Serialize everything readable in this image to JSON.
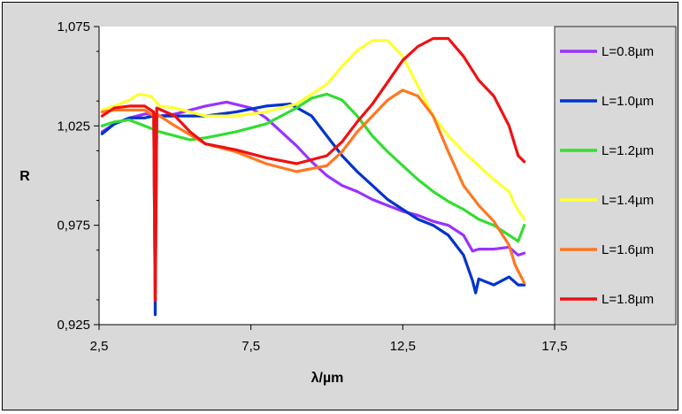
{
  "chart_data": {
    "type": "line",
    "title": "",
    "xlabel": "λ/µm",
    "ylabel": "R",
    "xlim": [
      2.5,
      17.5
    ],
    "ylim": [
      0.925,
      1.075
    ],
    "x_ticks": [
      "2,5",
      "7,5",
      "12,5",
      "17,5"
    ],
    "y_ticks": [
      "0,925",
      "0,975",
      "1,025",
      "1,075"
    ],
    "grid": false,
    "legend_position": "right",
    "plot_background": "#ffffff",
    "chart_background": "#d9d9d9",
    "series": [
      {
        "name": "L=0.8µm",
        "color": "#9933ff",
        "points": [
          [
            2.6,
            1.022
          ],
          [
            3.0,
            1.026
          ],
          [
            3.5,
            1.029
          ],
          [
            4.0,
            1.031
          ],
          [
            4.3,
            1.031
          ],
          [
            4.5,
            1.03
          ],
          [
            5.0,
            1.031
          ],
          [
            6.0,
            1.035
          ],
          [
            6.7,
            1.037
          ],
          [
            7.5,
            1.034
          ],
          [
            8.0,
            1.029
          ],
          [
            8.5,
            1.022
          ],
          [
            9.0,
            1.015
          ],
          [
            9.5,
            1.007
          ],
          [
            10.0,
            1.0
          ],
          [
            10.5,
            0.995
          ],
          [
            11.0,
            0.992
          ],
          [
            11.5,
            0.988
          ],
          [
            12.0,
            0.985
          ],
          [
            12.5,
            0.982
          ],
          [
            13.0,
            0.98
          ],
          [
            13.5,
            0.977
          ],
          [
            14.0,
            0.975
          ],
          [
            14.5,
            0.97
          ],
          [
            14.8,
            0.962
          ],
          [
            15.0,
            0.963
          ],
          [
            15.5,
            0.963
          ],
          [
            16.0,
            0.964
          ],
          [
            16.3,
            0.96
          ],
          [
            16.5,
            0.961
          ]
        ]
      },
      {
        "name": "L=1.0µm",
        "color": "#0033cc",
        "points": [
          [
            2.6,
            1.021
          ],
          [
            3.0,
            1.026
          ],
          [
            3.5,
            1.029
          ],
          [
            4.0,
            1.029
          ],
          [
            4.3,
            1.03
          ],
          [
            4.35,
            0.93
          ],
          [
            4.4,
            1.03
          ],
          [
            5.0,
            1.03
          ],
          [
            6.0,
            1.03
          ],
          [
            7.0,
            1.032
          ],
          [
            8.0,
            1.035
          ],
          [
            8.8,
            1.036
          ],
          [
            9.5,
            1.03
          ],
          [
            10.0,
            1.02
          ],
          [
            10.5,
            1.01
          ],
          [
            11.0,
            1.002
          ],
          [
            11.5,
            0.995
          ],
          [
            12.0,
            0.988
          ],
          [
            12.5,
            0.983
          ],
          [
            13.0,
            0.978
          ],
          [
            13.5,
            0.975
          ],
          [
            14.0,
            0.97
          ],
          [
            14.5,
            0.96
          ],
          [
            14.8,
            0.947
          ],
          [
            14.9,
            0.941
          ],
          [
            15.0,
            0.948
          ],
          [
            15.5,
            0.945
          ],
          [
            16.0,
            0.949
          ],
          [
            16.3,
            0.945
          ],
          [
            16.5,
            0.945
          ]
        ]
      },
      {
        "name": "L=1.2µm",
        "color": "#33dd33",
        "points": [
          [
            2.6,
            1.025
          ],
          [
            3.0,
            1.027
          ],
          [
            3.5,
            1.028
          ],
          [
            4.0,
            1.025
          ],
          [
            4.5,
            1.022
          ],
          [
            5.0,
            1.02
          ],
          [
            5.5,
            1.018
          ],
          [
            6.0,
            1.019
          ],
          [
            7.0,
            1.022
          ],
          [
            8.0,
            1.026
          ],
          [
            9.0,
            1.034
          ],
          [
            9.5,
            1.039
          ],
          [
            10.0,
            1.041
          ],
          [
            10.5,
            1.038
          ],
          [
            11.0,
            1.03
          ],
          [
            11.5,
            1.02
          ],
          [
            12.0,
            1.012
          ],
          [
            12.5,
            1.005
          ],
          [
            13.0,
            0.998
          ],
          [
            13.5,
            0.992
          ],
          [
            14.0,
            0.987
          ],
          [
            14.5,
            0.983
          ],
          [
            15.0,
            0.978
          ],
          [
            15.5,
            0.975
          ],
          [
            16.0,
            0.97
          ],
          [
            16.3,
            0.967
          ],
          [
            16.5,
            0.975
          ]
        ]
      },
      {
        "name": "L=1.4µm",
        "color": "#ffff33",
        "points": [
          [
            2.6,
            1.033
          ],
          [
            3.0,
            1.035
          ],
          [
            3.5,
            1.038
          ],
          [
            3.8,
            1.041
          ],
          [
            4.2,
            1.04
          ],
          [
            4.5,
            1.035
          ],
          [
            5.0,
            1.034
          ],
          [
            6.0,
            1.03
          ],
          [
            7.0,
            1.03
          ],
          [
            8.0,
            1.032
          ],
          [
            9.0,
            1.036
          ],
          [
            10.0,
            1.046
          ],
          [
            10.5,
            1.055
          ],
          [
            11.0,
            1.063
          ],
          [
            11.5,
            1.068
          ],
          [
            12.0,
            1.068
          ],
          [
            12.5,
            1.06
          ],
          [
            13.0,
            1.045
          ],
          [
            13.5,
            1.03
          ],
          [
            14.0,
            1.02
          ],
          [
            14.5,
            1.012
          ],
          [
            15.0,
            1.005
          ],
          [
            15.5,
            0.998
          ],
          [
            16.0,
            0.992
          ],
          [
            16.2,
            0.985
          ],
          [
            16.5,
            0.978
          ]
        ]
      },
      {
        "name": "L=1.6µm",
        "color": "#ff7722",
        "points": [
          [
            2.6,
            1.032
          ],
          [
            3.0,
            1.033
          ],
          [
            3.5,
            1.033
          ],
          [
            4.0,
            1.033
          ],
          [
            4.3,
            1.03
          ],
          [
            4.35,
            0.94
          ],
          [
            4.4,
            1.031
          ],
          [
            5.0,
            1.025
          ],
          [
            6.0,
            1.016
          ],
          [
            7.0,
            1.012
          ],
          [
            8.0,
            1.006
          ],
          [
            9.0,
            1.002
          ],
          [
            10.0,
            1.005
          ],
          [
            10.5,
            1.012
          ],
          [
            11.0,
            1.022
          ],
          [
            11.5,
            1.03
          ],
          [
            12.0,
            1.038
          ],
          [
            12.5,
            1.043
          ],
          [
            13.0,
            1.04
          ],
          [
            13.5,
            1.03
          ],
          [
            14.0,
            1.012
          ],
          [
            14.5,
            0.995
          ],
          [
            15.0,
            0.985
          ],
          [
            15.5,
            0.977
          ],
          [
            16.0,
            0.965
          ],
          [
            16.2,
            0.955
          ],
          [
            16.5,
            0.946
          ]
        ]
      },
      {
        "name": "L=1.8µm",
        "color": "#ee1111",
        "points": [
          [
            2.6,
            1.03
          ],
          [
            3.0,
            1.034
          ],
          [
            3.5,
            1.035
          ],
          [
            4.0,
            1.035
          ],
          [
            4.3,
            1.032
          ],
          [
            4.35,
            0.937
          ],
          [
            4.4,
            1.034
          ],
          [
            5.0,
            1.03
          ],
          [
            5.5,
            1.022
          ],
          [
            6.0,
            1.016
          ],
          [
            7.0,
            1.013
          ],
          [
            8.0,
            1.009
          ],
          [
            9.0,
            1.006
          ],
          [
            10.0,
            1.01
          ],
          [
            10.5,
            1.017
          ],
          [
            11.0,
            1.027
          ],
          [
            11.5,
            1.036
          ],
          [
            12.0,
            1.047
          ],
          [
            12.5,
            1.058
          ],
          [
            13.0,
            1.065
          ],
          [
            13.5,
            1.069
          ],
          [
            14.0,
            1.069
          ],
          [
            14.5,
            1.06
          ],
          [
            15.0,
            1.048
          ],
          [
            15.5,
            1.04
          ],
          [
            16.0,
            1.025
          ],
          [
            16.3,
            1.01
          ],
          [
            16.5,
            1.007
          ]
        ]
      }
    ]
  }
}
